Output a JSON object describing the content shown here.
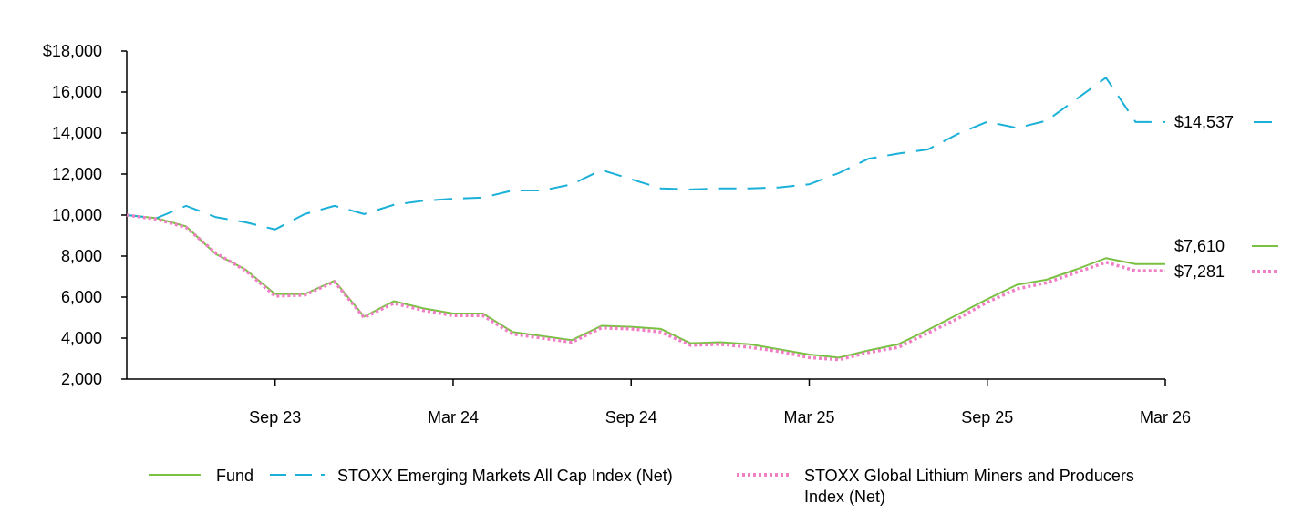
{
  "chart_data": {
    "type": "line",
    "title": "",
    "xlabel": "",
    "ylabel": "",
    "ylim": [
      2000,
      18000
    ],
    "yticks": [
      "$18,000",
      "16,000",
      "14,000",
      "12,000",
      "10,000",
      "8,000",
      "6,000",
      "4,000",
      "2,000"
    ],
    "ytick_values": [
      18000,
      16000,
      14000,
      12000,
      10000,
      8000,
      6000,
      4000,
      2000
    ],
    "xticks": [
      "Sep 23",
      "Mar 24",
      "Sep 24",
      "Mar 25",
      "Sep 25",
      "Mar 26"
    ],
    "x": [
      "Apr 23",
      "May 23",
      "Jun 23",
      "Jul 23",
      "Aug 23",
      "Sep 23",
      "Oct 23",
      "Nov 23",
      "Dec 23",
      "Jan 24",
      "Feb 24",
      "Mar 24",
      "Apr 24",
      "May 24",
      "Jun 24",
      "Jul 24",
      "Aug 24",
      "Sep 24",
      "Oct 24",
      "Nov 24",
      "Dec 24",
      "Jan 25",
      "Feb 25",
      "Mar 25",
      "Apr 25",
      "May 25",
      "Jun 25",
      "Jul 25",
      "Aug 25",
      "Sep 25",
      "Oct 25",
      "Nov 25",
      "Dec 25",
      "Jan 26",
      "Feb 26",
      "Mar 26"
    ],
    "grid": false,
    "legend_position": "bottom",
    "series": [
      {
        "name": "Fund",
        "color": "#7ac143",
        "style": "solid",
        "end_label": "$7,610",
        "values": [
          10000,
          9850,
          9450,
          8100,
          7350,
          6150,
          6150,
          6800,
          5050,
          5800,
          5450,
          5200,
          5200,
          4300,
          4100,
          3900,
          4600,
          4550,
          4450,
          3750,
          3800,
          3700,
          3450,
          3200,
          3050,
          3400,
          3700,
          4400,
          5150,
          5900,
          6600,
          6850,
          7350,
          7900,
          7610,
          7610
        ]
      },
      {
        "name": "STOXX Emerging Markets All Cap Index (Net)",
        "color": "#1ab0d8",
        "style": "dashed",
        "end_label": "$14,537",
        "values": [
          10000,
          9850,
          10450,
          9900,
          9650,
          9300,
          10050,
          10450,
          10050,
          10500,
          10700,
          10800,
          10850,
          11200,
          11200,
          11500,
          12200,
          11750,
          11300,
          11250,
          11300,
          11300,
          11350,
          11500,
          12050,
          12750,
          13000,
          13200,
          13950,
          14550,
          14250,
          14600,
          15650,
          16700,
          14537,
          14537
        ]
      },
      {
        "name": "STOXX Global Lithium Miners and Producers Index (Net)",
        "color": "#f07fc6",
        "style": "dotted",
        "end_label": "$7,281",
        "values": [
          10000,
          9800,
          9400,
          8150,
          7300,
          6050,
          6100,
          6750,
          5000,
          5700,
          5350,
          5100,
          5100,
          4200,
          4000,
          3800,
          4500,
          4450,
          4300,
          3650,
          3700,
          3550,
          3350,
          3050,
          2950,
          3300,
          3550,
          4250,
          4950,
          5750,
          6400,
          6700,
          7200,
          7700,
          7281,
          7281
        ]
      }
    ]
  }
}
